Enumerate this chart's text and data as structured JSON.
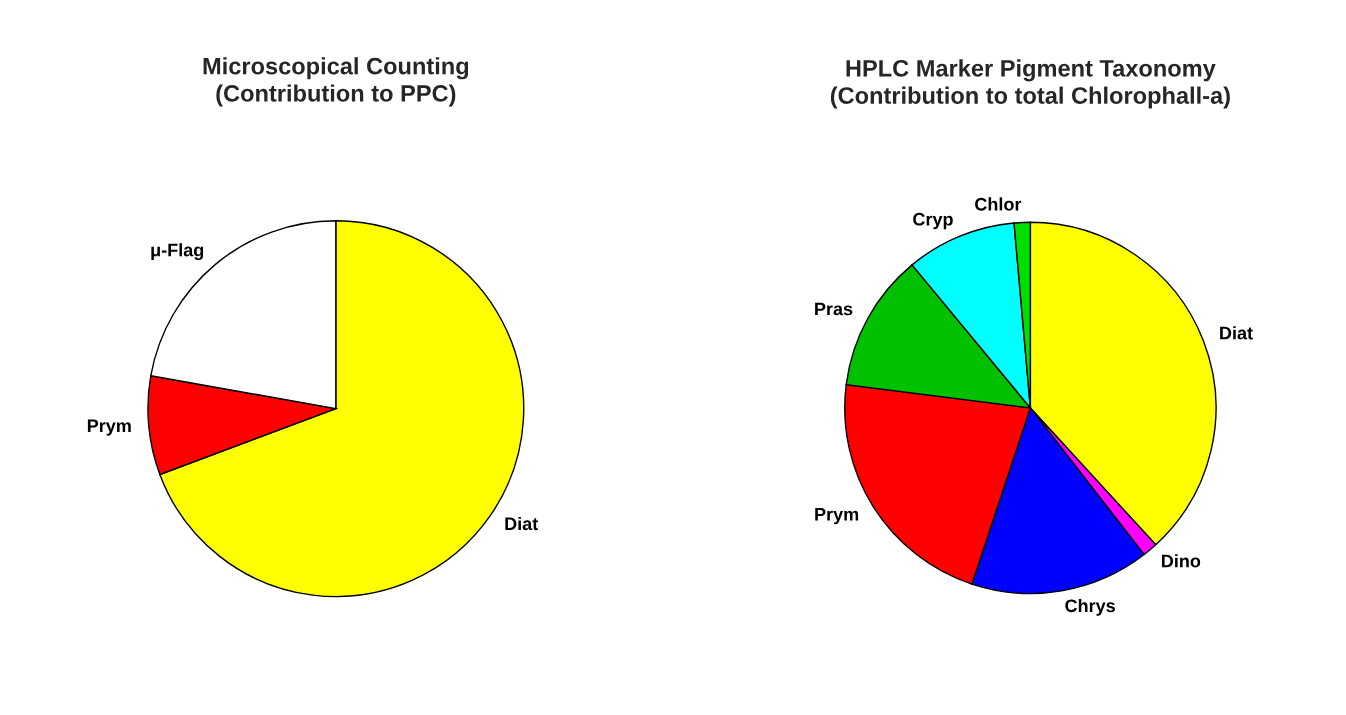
{
  "chart_data": [
    {
      "type": "pie",
      "title": "Microscopical Counting\n(Contribution to PPC)",
      "categories": [
        "Diat",
        "Prym",
        "μ-Flag"
      ],
      "values": [
        69.3,
        8.5,
        22.2
      ],
      "colors": [
        "#ffff00",
        "#ff0000",
        "#ffffff"
      ],
      "legend": false
    },
    {
      "type": "pie",
      "title": "HPLC Marker Pigment Taxonomy\n(Contribution to total Chlorophall-a)",
      "categories": [
        "Diat",
        "Dino",
        "Chrys",
        "Prym",
        "Pras",
        "Cryp",
        "Chlor"
      ],
      "values": [
        38.2,
        1.3,
        15.6,
        21.9,
        12.0,
        9.6,
        1.4
      ],
      "colors": [
        "#ffff00",
        "#ff00ff",
        "#0000ff",
        "#ff0000",
        "#00c000",
        "#00ffff",
        "#00e000"
      ],
      "legend": false
    }
  ]
}
